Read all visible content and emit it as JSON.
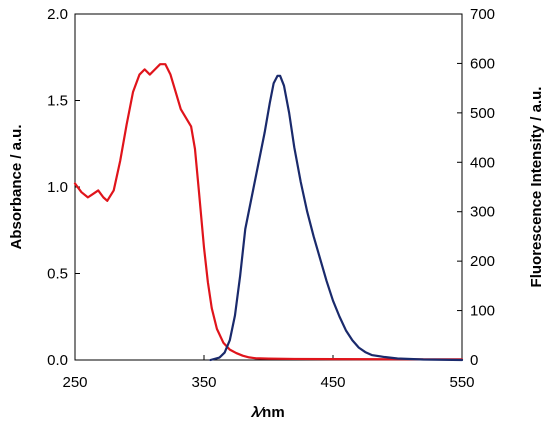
{
  "chart_data": {
    "type": "line",
    "title": "",
    "xlabel": "λ ⁄ nm",
    "xlabel_parts": {
      "var": "λ",
      "sep": "⁄",
      "unit": "nm"
    },
    "ylabel_left": "Absorbance / a.u.",
    "ylabel_right": "Fluorescence Intensity / a.u.",
    "xlim": [
      250,
      550
    ],
    "xticks": [
      "250",
      "350",
      "450",
      "550"
    ],
    "ylim_left": [
      0.0,
      2.0
    ],
    "yticks_left": [
      "0.0",
      "0.5",
      "1.0",
      "1.5",
      "2.0"
    ],
    "ylim_right": [
      0,
      700
    ],
    "yticks_right": [
      "0",
      "100",
      "200",
      "300",
      "400",
      "500",
      "600",
      "700"
    ],
    "grid": false,
    "legend": "none",
    "series": [
      {
        "axis": "left",
        "color": "#e0141b",
        "x": [
          250,
          255,
          260,
          264,
          268,
          272,
          275,
          280,
          285,
          290,
          295,
          300,
          304,
          308,
          312,
          316,
          320,
          324,
          328,
          332,
          336,
          340,
          343,
          346,
          350,
          353,
          356,
          360,
          365,
          370,
          375,
          380,
          385,
          390,
          400,
          420,
          450,
          500,
          550
        ],
        "y": [
          1.02,
          0.97,
          0.94,
          0.96,
          0.98,
          0.94,
          0.92,
          0.98,
          1.15,
          1.36,
          1.55,
          1.65,
          1.68,
          1.65,
          1.68,
          1.71,
          1.71,
          1.65,
          1.55,
          1.45,
          1.4,
          1.35,
          1.22,
          0.98,
          0.65,
          0.45,
          0.3,
          0.18,
          0.1,
          0.06,
          0.04,
          0.025,
          0.015,
          0.01,
          0.008,
          0.006,
          0.005,
          0.004,
          0.004
        ]
      },
      {
        "axis": "right",
        "color": "#1a2a6c",
        "x": [
          355,
          362,
          366,
          370,
          374,
          378,
          382,
          387,
          392,
          397,
          401,
          404,
          407,
          409,
          412,
          416,
          420,
          425,
          430,
          435,
          440,
          445,
          450,
          455,
          460,
          465,
          470,
          475,
          480,
          490,
          500,
          520,
          550
        ],
        "y": [
          0,
          5,
          15,
          40,
          90,
          170,
          265,
          330,
          395,
          460,
          520,
          560,
          575,
          575,
          555,
          500,
          430,
          360,
          300,
          250,
          205,
          160,
          120,
          88,
          60,
          40,
          25,
          16,
          10,
          6,
          3,
          1,
          0
        ]
      }
    ]
  }
}
